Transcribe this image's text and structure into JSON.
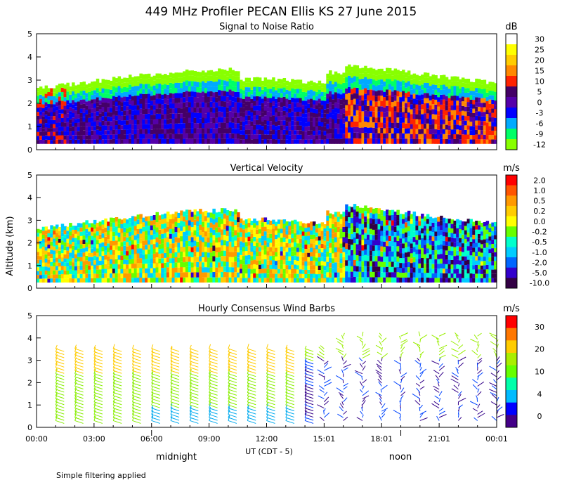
{
  "title": "449 MHz Profiler PECAN Ellis KS 27 June 2015",
  "ylabel": "Altitude (km)",
  "xlabel": "UT  (CDT - 5)",
  "footnote": "Simple filtering applied",
  "markers": [
    "midnight",
    "noon"
  ],
  "x_ticks": [
    "00:00",
    "03:00",
    "06:00",
    "09:00",
    "12:00",
    "15:01",
    "18:01",
    "21:01",
    "00:01"
  ],
  "chart_data": [
    {
      "type": "heatmap",
      "title": "Signal to Noise Ratio",
      "unit": "dB",
      "ylim": [
        0,
        5
      ],
      "yticks": [
        "0",
        "1",
        "2",
        "3",
        "4",
        "5"
      ],
      "colorbar": {
        "labels": [
          "30",
          "25",
          "20",
          "15",
          "10",
          "5",
          "0",
          "-3",
          "-6",
          "-9",
          "-12"
        ],
        "colors": [
          "#ffffff",
          "#ffff00",
          "#ffcc00",
          "#ff8800",
          "#ff2200",
          "#440066",
          "#5500aa",
          "#0000ff",
          "#00aaff",
          "#00ff66",
          "#88ff00"
        ]
      }
    },
    {
      "type": "heatmap",
      "title": "Vertical Velocity",
      "unit": "m/s",
      "ylim": [
        0,
        5
      ],
      "yticks": [
        "0",
        "1",
        "2",
        "3",
        "4",
        "5"
      ],
      "colorbar": {
        "labels": [
          "2.0",
          "1.0",
          "0.5",
          "0.2",
          "0.0",
          "-0.2",
          "-0.5",
          "-1.0",
          "-2.0",
          "-5.0",
          "-10.0"
        ],
        "colors": [
          "#ff0000",
          "#ff5500",
          "#ff9900",
          "#ffcc00",
          "#ffff00",
          "#66ff00",
          "#00ffcc",
          "#00ccff",
          "#0066ff",
          "#3300cc",
          "#330044"
        ]
      }
    },
    {
      "type": "wind_barbs",
      "title": "Hourly Consensus Wind Barbs",
      "unit": "m/s",
      "ylim": [
        0,
        5
      ],
      "yticks": [
        "0",
        "1",
        "2",
        "3",
        "4",
        "5"
      ],
      "colorbar": {
        "labels": [
          "30",
          "20",
          "10",
          "4",
          "0"
        ],
        "colors": [
          "#ff0000",
          "#ff7700",
          "#ffcc00",
          "#aaee00",
          "#66ff00",
          "#00ffaa",
          "#00bbff",
          "#0000ff",
          "#440088"
        ]
      }
    }
  ]
}
